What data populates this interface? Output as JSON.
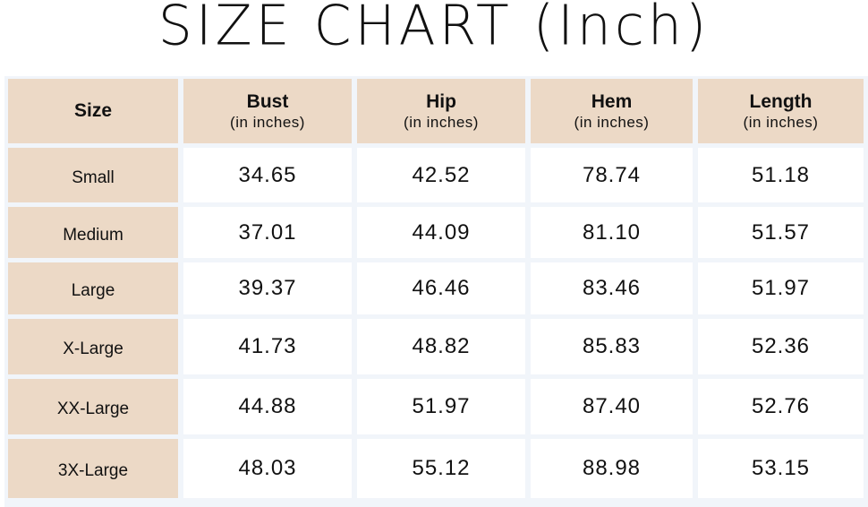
{
  "title": "SIZE CHART (Inch)",
  "header": {
    "size": "Size",
    "columns": [
      {
        "label": "Bust",
        "unit": "(in inches)"
      },
      {
        "label": "Hip",
        "unit": "(in inches)"
      },
      {
        "label": "Hem",
        "unit": "(in inches)"
      },
      {
        "label": "Length",
        "unit": "(in inches)"
      }
    ]
  },
  "rows": [
    {
      "size": "Small",
      "values": [
        "34.65",
        "42.52",
        "78.74",
        "51.18"
      ]
    },
    {
      "size": "Medium",
      "values": [
        "37.01",
        "44.09",
        "81.10",
        "51.57"
      ]
    },
    {
      "size": "Large",
      "values": [
        "39.37",
        "46.46",
        "83.46",
        "51.97"
      ]
    },
    {
      "size": "X-Large",
      "values": [
        "41.73",
        "48.82",
        "85.83",
        "52.36"
      ]
    },
    {
      "size": "XX-Large",
      "values": [
        "44.88",
        "51.97",
        "87.40",
        "52.76"
      ]
    },
    {
      "size": "3X-Large",
      "values": [
        "48.03",
        "55.12",
        "88.98",
        "53.15"
      ]
    }
  ],
  "colors": {
    "header_bg": "#ecd9c6",
    "cell_bg": "#ffffff",
    "gap": "#f1f5fa"
  }
}
